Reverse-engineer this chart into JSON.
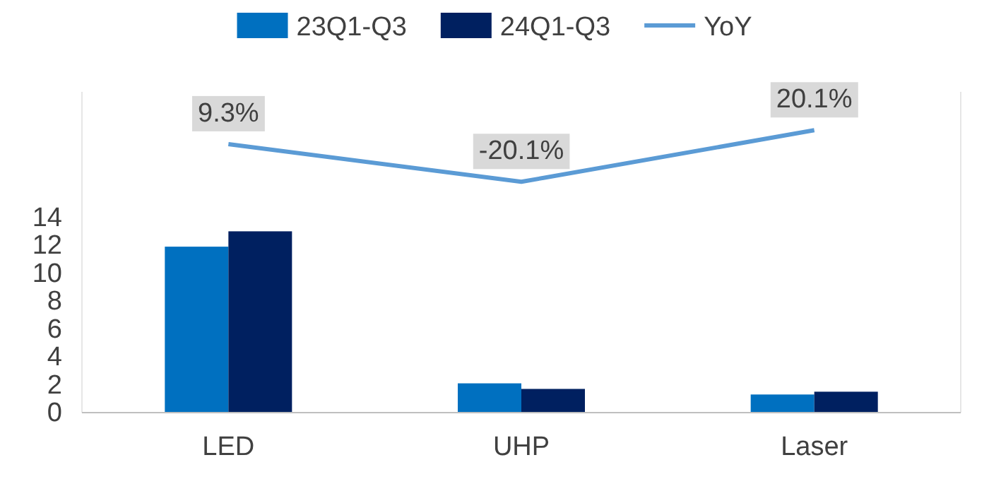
{
  "chart_data": {
    "type": "bar",
    "categories": [
      "LED",
      "UHP",
      "Laser"
    ],
    "series": [
      {
        "name": "23Q1-Q3",
        "color": "#0070c0",
        "values": [
          11.9,
          2.1,
          1.3
        ]
      },
      {
        "name": "24Q1-Q3",
        "color": "#002060",
        "values": [
          13.0,
          1.7,
          1.5
        ]
      },
      {
        "name": "YoY",
        "type": "line",
        "axis": "y2",
        "color": "#5b9bd5",
        "values": [
          9.3,
          -20.1,
          20.1
        ],
        "value_labels": [
          "9.3%",
          "-20.1%",
          "20.1%"
        ]
      }
    ],
    "ylim": [
      0,
      23
    ],
    "yticks": [
      0,
      2,
      4,
      6,
      8,
      10,
      12,
      14
    ],
    "y2lim": [
      -200,
      50
    ],
    "tick_labels": "y",
    "legend": "top",
    "grid": false,
    "marker": "none"
  }
}
